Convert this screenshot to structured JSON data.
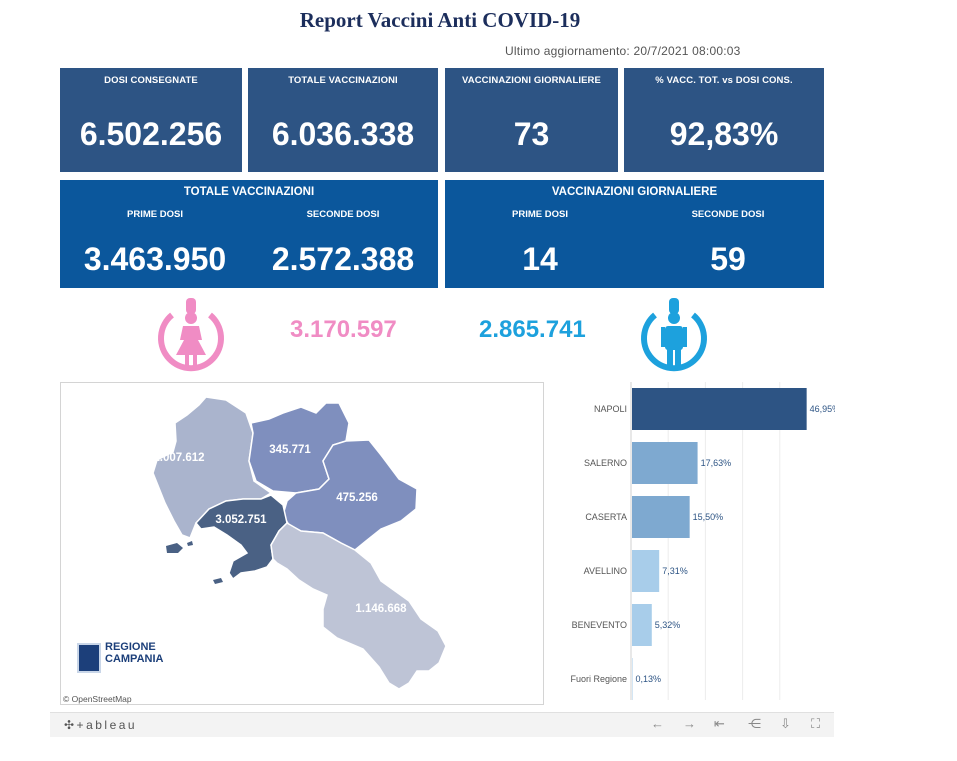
{
  "title": "Report Vaccini Anti COVID-19",
  "last_update": "Ultimo aggiornamento: 20/7/2021 08:00:03",
  "kpis": [
    {
      "label": "DOSI  CONSEGNATE",
      "value": "6.502.256"
    },
    {
      "label": "TOTALE VACCINAZIONI",
      "value": "6.036.338"
    },
    {
      "label": "VACCINAZIONI GIORNALIERE",
      "value": "73"
    },
    {
      "label": "% VACC. TOT. vs DOSI CONS.",
      "value": "92,83%"
    }
  ],
  "totale_vaccinazioni": {
    "header": "TOTALE VACCINAZIONI",
    "prime_label": "PRIME DOSI",
    "prime_value": "3.463.950",
    "seconde_label": "SECONDE DOSI",
    "seconde_value": "2.572.388"
  },
  "vaccinazioni_giornaliere": {
    "header": "VACCINAZIONI GIORNALIERE",
    "prime_label": "PRIME DOSI",
    "prime_value": "14",
    "seconde_label": "SECONDE DOSI",
    "seconde_value": "59"
  },
  "gender": {
    "female_value": "3.170.597",
    "female_color": "#f08cc4",
    "female_icon": "female-person-icon",
    "male_value": "2.865.741",
    "male_color": "#1da1dd",
    "male_icon": "male-person-icon"
  },
  "map": {
    "provinces": [
      {
        "name": "Caserta",
        "label": "1.007.612",
        "color": "#aab4cd"
      },
      {
        "name": "Benevento",
        "label": "345.771",
        "color": "#7f8fbe"
      },
      {
        "name": "Avellino",
        "label": "475.256",
        "color": "#7f8fbe"
      },
      {
        "name": "Napoli",
        "label": "3.052.751",
        "color": "#4a6184"
      },
      {
        "name": "Salerno",
        "label": "1.146.668",
        "color": "#bec4d6"
      }
    ],
    "logo_line1": "REGIONE",
    "logo_line2": "CAMPANIA",
    "attribution": "© OpenStreetMap"
  },
  "chart_data": {
    "type": "bar",
    "orientation": "horizontal",
    "categories": [
      "NAPOLI",
      "SALERNO",
      "CASERTA",
      "AVELLINO",
      "BENEVENTO",
      "Fuori Regione"
    ],
    "values": [
      46.95,
      17.63,
      15.5,
      7.31,
      5.32,
      0.13
    ],
    "labels": [
      "46,95%",
      "17,63%",
      "15,50%",
      "7,31%",
      "5,32%",
      "0,13%"
    ],
    "colors": [
      "#2d5484",
      "#7ea9d0",
      "#7ea9d0",
      "#a8cdea",
      "#a8cdea",
      "#a8cdea"
    ],
    "xlim": [
      0,
      50
    ],
    "grid": true
  },
  "toolbar": {
    "logo": "✣+ableau",
    "buttons": [
      {
        "name": "undo-button",
        "icon": "←"
      },
      {
        "name": "redo-button",
        "icon": "→"
      },
      {
        "name": "revert-button",
        "icon": "⇤"
      },
      {
        "name": "share-button",
        "icon": "⋲"
      },
      {
        "name": "download-button",
        "icon": "⇩"
      },
      {
        "name": "fullscreen-button",
        "icon": "⛶"
      }
    ]
  }
}
